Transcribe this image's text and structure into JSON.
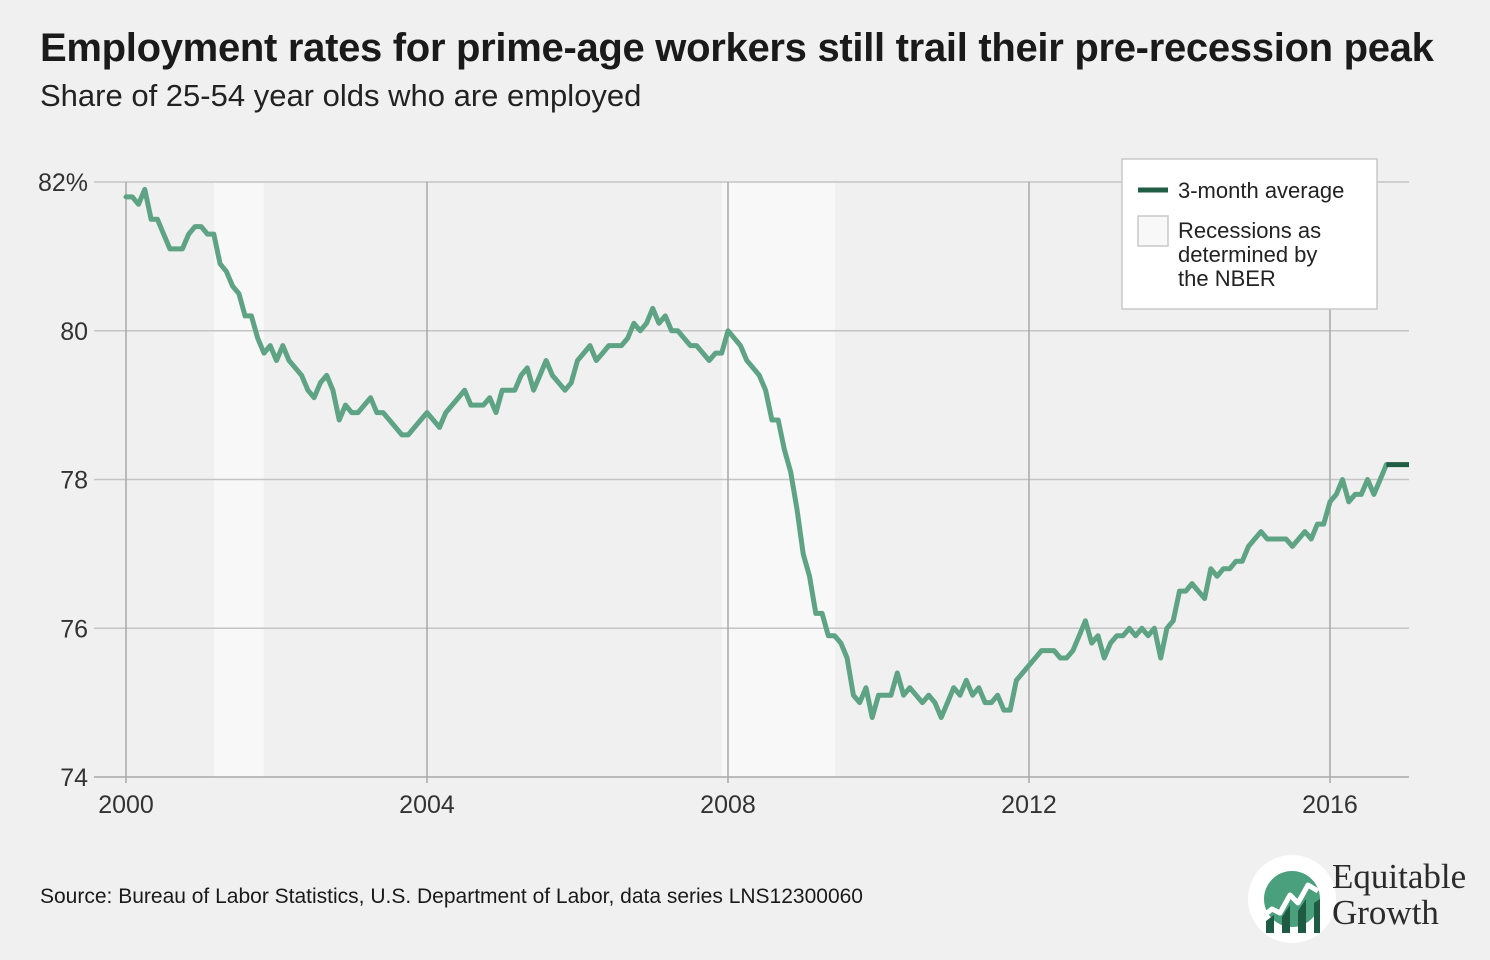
{
  "header": {
    "title": "Employment rates for prime-age workers still trail their pre-recession peak",
    "subtitle": "Share of 25-54 year olds who are employed"
  },
  "footer": {
    "source": "Source: Bureau of Labor Statistics, U.S. Department of Labor, data series LNS12300060"
  },
  "logo": {
    "line1": "Equitable",
    "line2": "Growth"
  },
  "colors": {
    "line": "#5fa385",
    "average": "#215c44",
    "recession": "#f8f8f8",
    "grid": "#c4c4c4",
    "axis": "#a8a8a8",
    "logo_green": "#4aa07d",
    "logo_dark": "#1f5a42"
  },
  "chart_data": {
    "type": "line",
    "title": "Employment rates for prime-age workers still trail their pre-recession peak",
    "subtitle": "Share of 25-54 year olds who are employed",
    "xlabel": "",
    "ylabel": "",
    "xlim": [
      2000,
      2017.05
    ],
    "ylim": [
      74,
      82
    ],
    "grid": true,
    "legend_position": "top-right",
    "x_ticks": [
      {
        "value": 2000,
        "label": "2000"
      },
      {
        "value": 2004,
        "label": "2004"
      },
      {
        "value": 2008,
        "label": "2008"
      },
      {
        "value": 2012,
        "label": "2012"
      },
      {
        "value": 2016,
        "label": "2016"
      }
    ],
    "y_ticks": [
      {
        "value": 82,
        "label": "82%"
      },
      {
        "value": 80,
        "label": "80"
      },
      {
        "value": 78,
        "label": "78"
      },
      {
        "value": 76,
        "label": "76"
      },
      {
        "value": 74,
        "label": "74"
      }
    ],
    "legend": [
      {
        "label": "3-month average",
        "kind": "line"
      },
      {
        "label": "Recessions as determined by the NBER",
        "lines": [
          "Recessions as",
          "determined by",
          "the NBER"
        ],
        "kind": "box"
      }
    ],
    "recessions": [
      {
        "start": 2001.17,
        "end": 2001.83
      },
      {
        "start": 2007.92,
        "end": 2009.42
      }
    ],
    "three_month_average": {
      "start": 2016.75,
      "end": 2017.05,
      "value": 78.2
    },
    "series": [
      {
        "start": 2000.0,
        "step_months": 1,
        "values": [
          81.8,
          81.8,
          81.7,
          81.9,
          81.5,
          81.5,
          81.3,
          81.1,
          81.1,
          81.1,
          81.3,
          81.4,
          81.4,
          81.3,
          81.3,
          80.9,
          80.8,
          80.6,
          80.5,
          80.2,
          80.2,
          79.9,
          79.7,
          79.8,
          79.6,
          79.8,
          79.6,
          79.5,
          79.4,
          79.2,
          79.1,
          79.3,
          79.4,
          79.2,
          78.8,
          79.0,
          78.9,
          78.9,
          79.0,
          79.1,
          78.9,
          78.9,
          78.8,
          78.7,
          78.6,
          78.6,
          78.7,
          78.8,
          78.9,
          78.8,
          78.7,
          78.9,
          79.0,
          79.1,
          79.2,
          79.0,
          79.0,
          79.0,
          79.1,
          78.9,
          79.2,
          79.2,
          79.2,
          79.4,
          79.5,
          79.2,
          79.4,
          79.6,
          79.4,
          79.3,
          79.2,
          79.3,
          79.6,
          79.7,
          79.8,
          79.6,
          79.7,
          79.8,
          79.8,
          79.8,
          79.9,
          80.1,
          80.0,
          80.1,
          80.3,
          80.1,
          80.2,
          80.0,
          80.0,
          79.9,
          79.8,
          79.8,
          79.7,
          79.6,
          79.7,
          79.7,
          80.0,
          79.9,
          79.8,
          79.6,
          79.5,
          79.4,
          79.2,
          78.8,
          78.8,
          78.4,
          78.1,
          77.6,
          77.0,
          76.7,
          76.2,
          76.2,
          75.9,
          75.9,
          75.8,
          75.6,
          75.1,
          75.0,
          75.2,
          74.8,
          75.1,
          75.1,
          75.1,
          75.4,
          75.1,
          75.2,
          75.1,
          75.0,
          75.1,
          75.0,
          74.8,
          75.0,
          75.2,
          75.1,
          75.3,
          75.1,
          75.2,
          75.0,
          75.0,
          75.1,
          74.9,
          74.9,
          75.3,
          75.4,
          75.5,
          75.6,
          75.7,
          75.7,
          75.7,
          75.6,
          75.6,
          75.7,
          75.9,
          76.1,
          75.8,
          75.9,
          75.6,
          75.8,
          75.9,
          75.9,
          76.0,
          75.9,
          76.0,
          75.9,
          76.0,
          75.6,
          76.0,
          76.1,
          76.5,
          76.5,
          76.6,
          76.5,
          76.4,
          76.8,
          76.7,
          76.8,
          76.8,
          76.9,
          76.9,
          77.1,
          77.2,
          77.3,
          77.2,
          77.2,
          77.2,
          77.2,
          77.1,
          77.2,
          77.3,
          77.2,
          77.4,
          77.4,
          77.7,
          77.8,
          78.0,
          77.7,
          77.8,
          77.8,
          78.0,
          77.8,
          78.0,
          78.2
        ]
      }
    ]
  }
}
